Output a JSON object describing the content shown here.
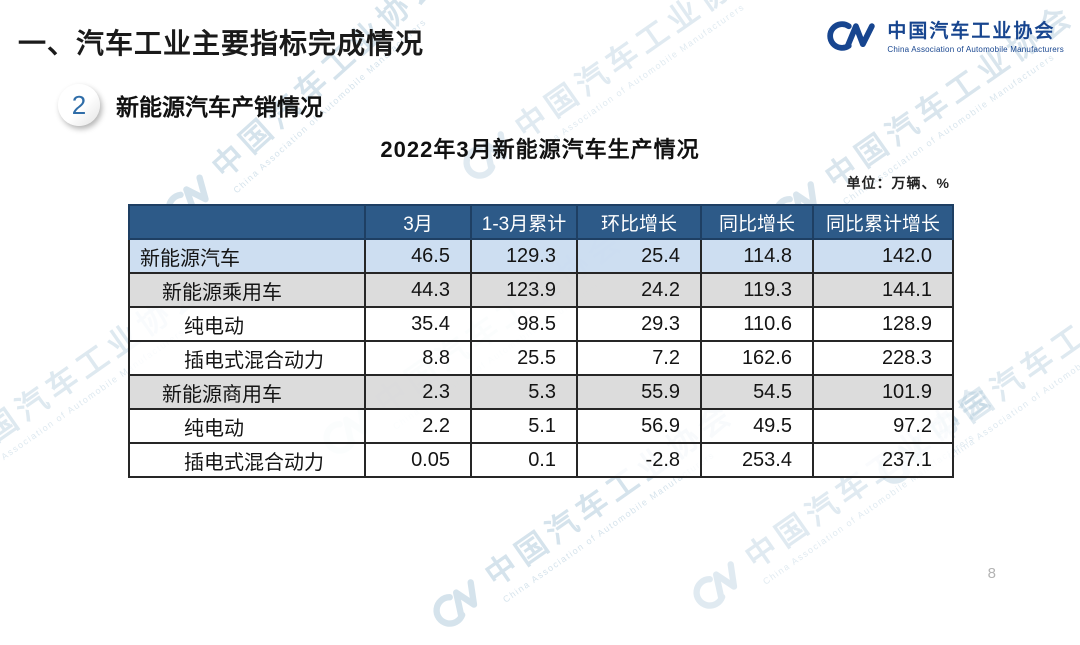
{
  "header": {
    "title": "一、汽车工业主要指标完成情况",
    "logo": {
      "mark": "CM",
      "name_cn": "中国汽车工业协会",
      "name_en": "China Association of Automobile Manufacturers"
    }
  },
  "section": {
    "badge": "2",
    "label": "新能源汽车产销情况"
  },
  "table": {
    "title": "2022年3月新能源汽车生产情况",
    "unit_note": "单位：万辆、%",
    "columns": [
      "",
      "3月",
      "1-3月累计",
      "环比增长",
      "同比增长",
      "同比累计增长"
    ],
    "rows": [
      {
        "label": "新能源汽车",
        "indent": 0,
        "style": "blue",
        "values": [
          "46.5",
          "129.3",
          "25.4",
          "114.8",
          "142.0"
        ]
      },
      {
        "label": "新能源乘用车",
        "indent": 1,
        "style": "gray",
        "values": [
          "44.3",
          "123.9",
          "24.2",
          "119.3",
          "144.1"
        ]
      },
      {
        "label": "纯电动",
        "indent": 2,
        "style": "plain",
        "values": [
          "35.4",
          "98.5",
          "29.3",
          "110.6",
          "128.9"
        ]
      },
      {
        "label": "插电式混合动力",
        "indent": 2,
        "style": "plain",
        "values": [
          "8.8",
          "25.5",
          "7.2",
          "162.6",
          "228.3"
        ]
      },
      {
        "label": "新能源商用车",
        "indent": 1,
        "style": "gray",
        "values": [
          "2.3",
          "5.3",
          "55.9",
          "54.5",
          "101.9"
        ]
      },
      {
        "label": "纯电动",
        "indent": 2,
        "style": "plain",
        "values": [
          "2.2",
          "5.1",
          "56.9",
          "49.5",
          "97.2"
        ]
      },
      {
        "label": "插电式混合动力",
        "indent": 2,
        "style": "plain",
        "values": [
          "0.05",
          "0.1",
          "-2.8",
          "253.4",
          "237.1"
        ]
      }
    ]
  },
  "chart_data": {
    "type": "table",
    "title": "2022年3月新能源汽车生产情况",
    "unit": "万辆、%",
    "columns": [
      "3月",
      "1-3月累计",
      "环比增长",
      "同比增长",
      "同比累计增长"
    ],
    "rows": [
      {
        "label": "新能源汽车",
        "values": [
          46.5,
          129.3,
          25.4,
          114.8,
          142.0
        ]
      },
      {
        "label": "新能源乘用车",
        "values": [
          44.3,
          123.9,
          24.2,
          119.3,
          144.1
        ]
      },
      {
        "label": "纯电动",
        "values": [
          35.4,
          98.5,
          29.3,
          110.6,
          128.9
        ]
      },
      {
        "label": "插电式混合动力",
        "values": [
          8.8,
          25.5,
          7.2,
          162.6,
          228.3
        ]
      },
      {
        "label": "新能源商用车",
        "values": [
          2.3,
          5.3,
          55.9,
          54.5,
          101.9
        ]
      },
      {
        "label": "纯电动",
        "values": [
          2.2,
          5.1,
          56.9,
          49.5,
          97.2
        ]
      },
      {
        "label": "插电式混合动力",
        "values": [
          0.05,
          0.1,
          -2.8,
          253.4,
          237.1
        ]
      }
    ]
  },
  "watermark": {
    "mark": "CM",
    "text_cn": "中国汽车工业协会",
    "text_en": "China Association of Automobile Manufacturers"
  },
  "footer": {
    "page_number": "8"
  },
  "colors": {
    "header_bg": "#2d5a88",
    "row_blue": "#c9dcf0",
    "row_gray": "#d9d9d9",
    "brand_blue": "#17458F",
    "watermark_blue": "#9cbdd2"
  }
}
